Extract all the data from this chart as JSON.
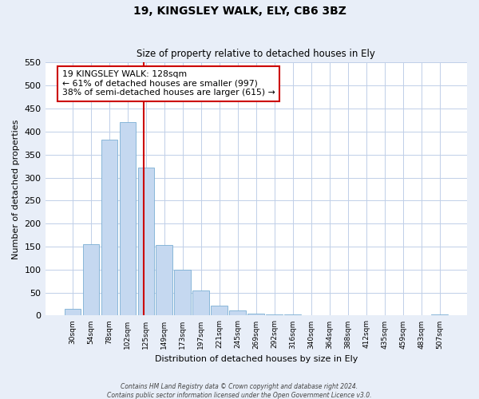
{
  "title": "19, KINGSLEY WALK, ELY, CB6 3BZ",
  "subtitle": "Size of property relative to detached houses in Ely",
  "xlabel": "Distribution of detached houses by size in Ely",
  "ylabel": "Number of detached properties",
  "bin_labels": [
    "30sqm",
    "54sqm",
    "78sqm",
    "102sqm",
    "125sqm",
    "149sqm",
    "173sqm",
    "197sqm",
    "221sqm",
    "245sqm",
    "269sqm",
    "292sqm",
    "316sqm",
    "340sqm",
    "364sqm",
    "388sqm",
    "412sqm",
    "435sqm",
    "459sqm",
    "483sqm",
    "507sqm"
  ],
  "bar_heights": [
    15,
    155,
    383,
    420,
    322,
    153,
    100,
    54,
    22,
    12,
    5,
    2,
    2,
    1,
    1,
    1,
    0,
    0,
    0,
    0,
    2
  ],
  "bar_color": "#c5d8f0",
  "bar_edge_color": "#7bafd4",
  "property_line_color": "#cc0000",
  "ylim": [
    0,
    550
  ],
  "yticks": [
    0,
    50,
    100,
    150,
    200,
    250,
    300,
    350,
    400,
    450,
    500,
    550
  ],
  "annotation_title": "19 KINGSLEY WALK: 128sqm",
  "annotation_line1": "← 61% of detached houses are smaller (997)",
  "annotation_line2": "38% of semi-detached houses are larger (615) →",
  "footer_line1": "Contains HM Land Registry data © Crown copyright and database right 2024.",
  "footer_line2": "Contains public sector information licensed under the Open Government Licence v3.0.",
  "background_color": "#e8eef8",
  "plot_bg_color": "#ffffff",
  "grid_color": "#c0cfe8"
}
